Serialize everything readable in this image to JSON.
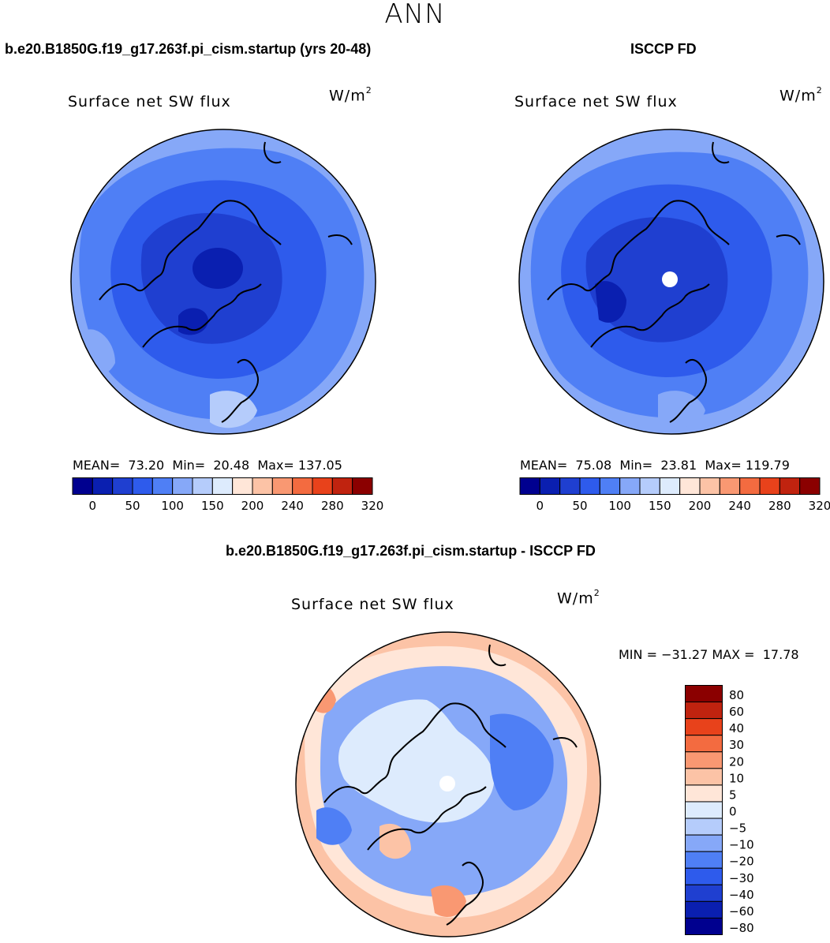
{
  "season": "ANN",
  "units_main": "W/m",
  "units_sup": "2",
  "panels": [
    {
      "case": "b.e20.B1850G.f19_g17.263f.pi_cism.startup (yrs 20-48)",
      "title": "Surface net SW flux",
      "stats": "MEAN=  73.20  Min=  20.48  Max= 137.05"
    },
    {
      "case": "ISCCP FD",
      "title": "Surface net SW flux",
      "stats": "MEAN=  75.08  Min=  23.81  Max= 119.79"
    },
    {
      "case": "b.e20.B1850G.f19_g17.263f.pi_cism.startup - ISCCP FD",
      "title": "Surface net SW flux",
      "stats": "MIN = −31.27 MAX =  17.78"
    }
  ],
  "colors": {
    "abs_scale": [
      "#00008f",
      "#0a1fb0",
      "#1f3fd0",
      "#2e5bec",
      "#4f7ff5",
      "#86a8f8",
      "#b5ccfb",
      "#ddebfd",
      "#ffe6d8",
      "#fcc3a6",
      "#f99872",
      "#f36b40",
      "#e8421b",
      "#c0230f",
      "#8b0000"
    ],
    "diff_scale": [
      "#00008f",
      "#0a1fb0",
      "#1f3fd0",
      "#2e5bec",
      "#4f7ff5",
      "#86a8f8",
      "#b5ccfb",
      "#ddebfd",
      "#ffe6d8",
      "#fcc3a6",
      "#f99872",
      "#f36b40",
      "#e8421b",
      "#c0230f",
      "#8b0000"
    ]
  },
  "chart_data": [
    {
      "type": "heatmap",
      "title": "Surface net SW flux",
      "projection": "north polar stereographic",
      "units": "W/m2",
      "colorbar_ticks": [
        "0",
        "50",
        "100",
        "150",
        "200",
        "240",
        "280",
        "320"
      ],
      "colorbar_levels": [
        0,
        25,
        50,
        75,
        100,
        125,
        150,
        175,
        200,
        220,
        240,
        260,
        280,
        300,
        320
      ],
      "mean": 73.2,
      "min": 20.48,
      "max": 137.05
    },
    {
      "type": "heatmap",
      "title": "Surface net SW flux",
      "projection": "north polar stereographic",
      "units": "W/m2",
      "colorbar_ticks": [
        "0",
        "50",
        "100",
        "150",
        "200",
        "240",
        "280",
        "320"
      ],
      "colorbar_levels": [
        0,
        25,
        50,
        75,
        100,
        125,
        150,
        175,
        200,
        220,
        240,
        260,
        280,
        300,
        320
      ],
      "mean": 75.08,
      "min": 23.81,
      "max": 119.79
    },
    {
      "type": "heatmap",
      "title": "Surface net SW flux",
      "projection": "north polar stereographic",
      "units": "W/m2",
      "colorbar_ticks": [
        "80",
        "60",
        "40",
        "30",
        "20",
        "10",
        "5",
        "0",
        "−5",
        "−10",
        "−20",
        "−30",
        "−40",
        "−60",
        "−80"
      ],
      "min": -31.27,
      "max": 17.78
    }
  ]
}
